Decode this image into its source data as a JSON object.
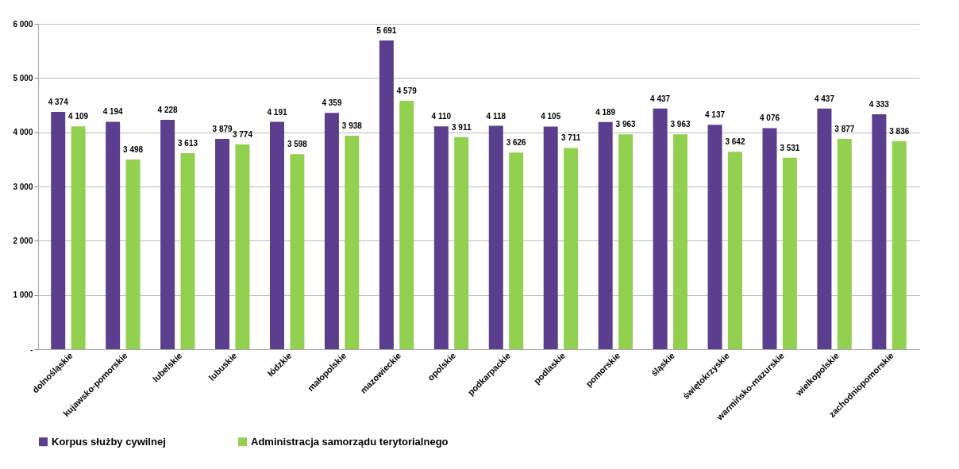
{
  "chart_data": {
    "type": "bar",
    "categories": [
      "dolnośląskie",
      "kujawsko-pomorskie",
      "lubelskie",
      "lubuskie",
      "łódzkie",
      "małopolskie",
      "mazowieckie",
      "opolskie",
      "podkarpackie",
      "podlaskie",
      "pomorskie",
      "śląskie",
      "świętokrzyskie",
      "warmińsko-mazurskie",
      "wielkopolskie",
      "zachodniopomorskie"
    ],
    "series": [
      {
        "name": "Korpus służby cywilnej",
        "color": "#5b3e8e",
        "values": [
          4374,
          4194,
          4228,
          3879,
          4191,
          4359,
          5691,
          4110,
          4118,
          4105,
          4189,
          4437,
          4137,
          4076,
          4437,
          4333
        ],
        "value_labels": [
          "4 374",
          "4 194",
          "4 228",
          "3 879",
          "4 191",
          "4 359",
          "5 691",
          "4 110",
          "4 118",
          "4 105",
          "4 189",
          "4 437",
          "4 137",
          "4 076",
          "4 437",
          "4 333"
        ]
      },
      {
        "name": "Administracja samorządu terytorialnego",
        "color": "#92d050",
        "values": [
          4109,
          3498,
          3613,
          3774,
          3598,
          3938,
          4579,
          3911,
          3626,
          3711,
          3963,
          3963,
          3642,
          3531,
          3877,
          3836
        ],
        "value_labels": [
          "4 109",
          "3 498",
          "3 613",
          "3 774",
          "3 598",
          "3 938",
          "4 579",
          "3 911",
          "3 626",
          "3 711",
          "3 963",
          "3 963",
          "3 642",
          "3 531",
          "3 877",
          "3 836"
        ]
      }
    ],
    "ylim": [
      0,
      6000
    ],
    "yticks": [
      {
        "value": 0,
        "label": "-"
      },
      {
        "value": 1000,
        "label": "1 000"
      },
      {
        "value": 2000,
        "label": "2 000"
      },
      {
        "value": 3000,
        "label": "3 000"
      },
      {
        "value": 4000,
        "label": "4 000"
      },
      {
        "value": 5000,
        "label": "5 000"
      },
      {
        "value": 6000,
        "label": "6 000"
      }
    ],
    "grid": "y",
    "legend": "bottom"
  }
}
